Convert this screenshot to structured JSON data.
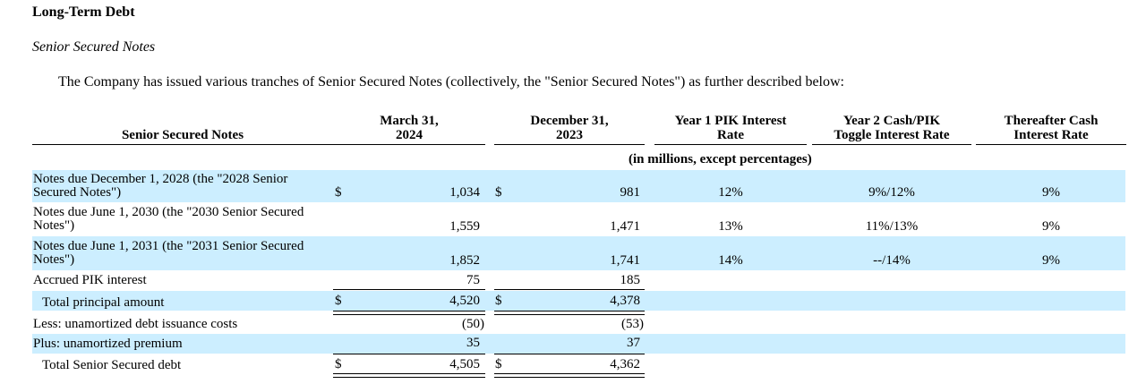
{
  "title": "Long-Term Debt",
  "subtitle": "Senior Secured Notes",
  "intro": "The Company has issued various tranches of Senior Secured Notes (collectively, the \"Senior Secured Notes\") as further described below:",
  "headers": {
    "label": "Senior Secured Notes",
    "mar_l1": "March 31,",
    "mar_l2": "2024",
    "dec_l1": "December 31,",
    "dec_l2": "2023",
    "y1_l1": "Year 1 PIK Interest",
    "y1_l2": "Rate",
    "y2_l1": "Year 2 Cash/PIK",
    "y2_l2": "Toggle Interest Rate",
    "th_l1": "Thereafter Cash",
    "th_l2": "Interest Rate"
  },
  "units": "(in millions, except percentages)",
  "currency": "$",
  "rows": [
    {
      "label_l1": "Notes due December 1, 2028 (the \"2028 Senior",
      "label_l2": "Secured Notes\")",
      "mar": "1,034",
      "dec": "981",
      "y1": "12%",
      "y2": "9%/12%",
      "th": "9%"
    },
    {
      "label_l1": "Notes due June 1, 2030 (the \"2030 Senior Secured",
      "label_l2": "Notes\")",
      "mar": "1,559",
      "dec": "1,471",
      "y1": "13%",
      "y2": "11%/13%",
      "th": "9%"
    },
    {
      "label_l1": "Notes due June 1, 2031 (the \"2031 Senior Secured",
      "label_l2": "Notes\")",
      "mar": "1,852",
      "dec": "1,741",
      "y1": "14%",
      "y2": "--/14%",
      "th": "9%"
    },
    {
      "label": "Accrued PIK interest",
      "mar": "75",
      "dec": "185"
    },
    {
      "label": "Total principal amount",
      "mar": "4,520",
      "dec": "4,378"
    },
    {
      "label": "Less: unamortized debt issuance costs",
      "mar": "(50)",
      "dec": "(53)"
    },
    {
      "label": "Plus: unamortized premium",
      "mar": "35",
      "dec": "37"
    },
    {
      "label": "Total Senior Secured debt",
      "mar": "4,505",
      "dec": "4,362"
    }
  ]
}
